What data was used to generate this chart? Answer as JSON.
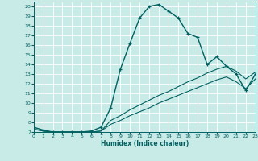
{
  "xlabel": "Humidex (Indice chaleur)",
  "bg_color": "#c8ebe8",
  "line_color": "#006060",
  "grid_color": "#ffffff",
  "xlim": [
    0,
    23
  ],
  "ylim": [
    7,
    20.5
  ],
  "yticks": [
    7,
    8,
    9,
    10,
    11,
    12,
    13,
    14,
    15,
    16,
    17,
    18,
    19,
    20
  ],
  "xticks": [
    0,
    1,
    2,
    3,
    4,
    5,
    6,
    7,
    8,
    9,
    10,
    11,
    12,
    13,
    14,
    15,
    16,
    17,
    18,
    19,
    20,
    21,
    22,
    23
  ],
  "curve1_x": [
    0,
    1,
    2,
    3,
    4,
    5,
    6,
    7,
    8,
    9,
    10,
    11,
    12,
    13,
    14,
    15,
    16,
    17,
    18,
    19,
    20,
    21,
    22,
    23
  ],
  "curve1_y": [
    7.5,
    7.2,
    7.0,
    7.0,
    7.0,
    7.0,
    7.1,
    7.5,
    9.5,
    13.5,
    16.2,
    18.8,
    20.0,
    20.2,
    19.5,
    18.8,
    17.2,
    16.8,
    14.0,
    14.8,
    13.8,
    13.0,
    11.3,
    13.0
  ],
  "curve2_x": [
    0,
    1,
    2,
    3,
    4,
    5,
    6,
    7,
    8,
    9,
    10,
    11,
    12,
    13,
    14,
    15,
    16,
    17,
    18,
    19,
    20,
    21,
    22,
    23
  ],
  "curve2_y": [
    7.3,
    7.1,
    7.0,
    7.0,
    7.0,
    7.0,
    7.0,
    7.1,
    7.8,
    8.2,
    8.7,
    9.1,
    9.5,
    10.0,
    10.4,
    10.8,
    11.2,
    11.6,
    12.0,
    12.4,
    12.7,
    12.2,
    11.5,
    12.5
  ],
  "curve3_x": [
    0,
    1,
    2,
    3,
    4,
    5,
    6,
    7,
    8,
    9,
    10,
    11,
    12,
    13,
    14,
    15,
    16,
    17,
    18,
    19,
    20,
    21,
    22,
    23
  ],
  "curve3_y": [
    7.3,
    7.1,
    7.0,
    7.0,
    7.0,
    7.0,
    7.0,
    7.1,
    8.2,
    8.7,
    9.3,
    9.8,
    10.3,
    10.8,
    11.2,
    11.7,
    12.2,
    12.6,
    13.1,
    13.5,
    13.8,
    13.3,
    12.5,
    13.2
  ]
}
